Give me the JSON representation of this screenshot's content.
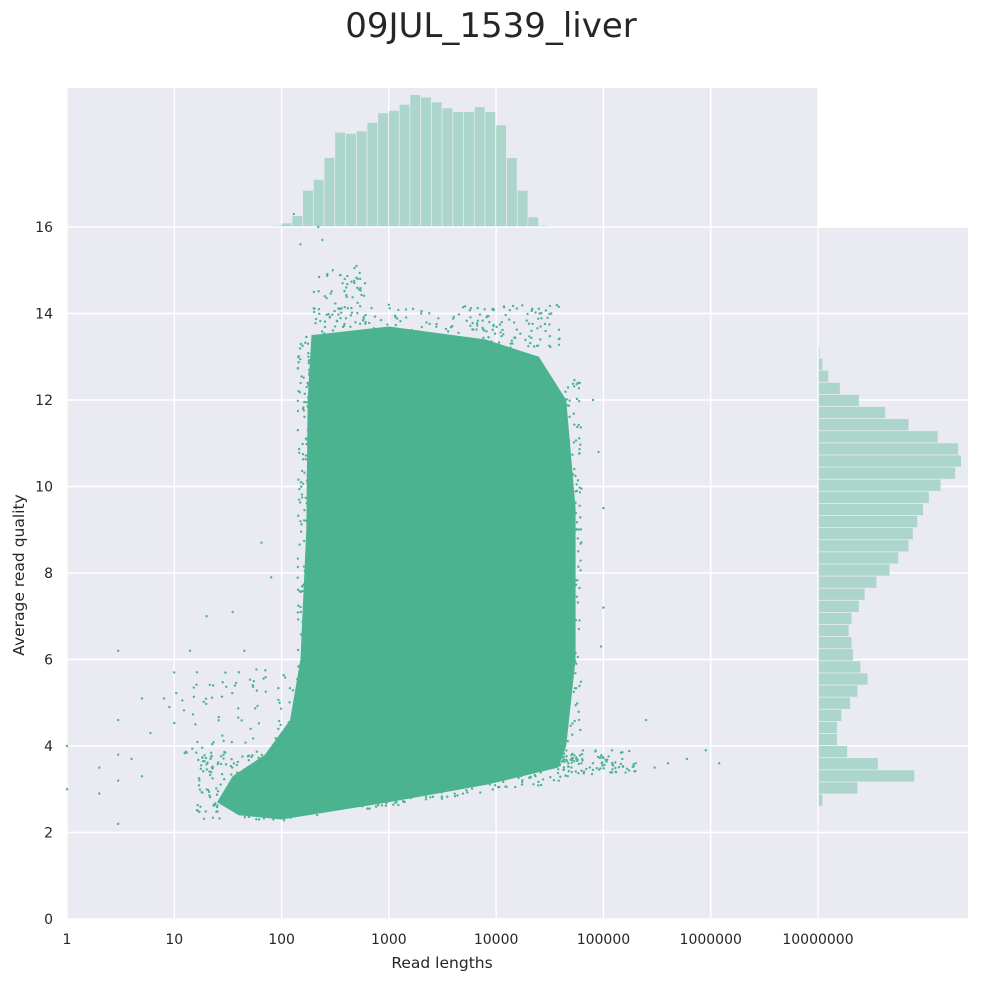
{
  "chart_data": {
    "type": "scatter",
    "title": "09JUL_1539_liver",
    "xlabel": "Read lengths",
    "ylabel": "Average read quality",
    "x_scale": "log",
    "xlim": [
      1,
      10000000
    ],
    "ylim": [
      0,
      16
    ],
    "x_ticks": [
      "1",
      "10",
      "100",
      "1000",
      "10000",
      "100000",
      "1000000",
      "10000000"
    ],
    "y_ticks": [
      "0",
      "2",
      "4",
      "6",
      "8",
      "10",
      "12",
      "14",
      "16"
    ],
    "grid": true,
    "colors": {
      "points": "#4cb391",
      "hist": "#acd6cb",
      "background": "#eaeaf2",
      "grid": "#ffffff"
    },
    "scatter_density_region": {
      "description": "dense block of reads",
      "x_range": [
        150,
        60000
      ],
      "y_range": [
        2.2,
        13.7
      ]
    },
    "outliers": [
      {
        "x": 3,
        "y": 6.2
      },
      {
        "x": 3,
        "y": 4.6
      },
      {
        "x": 3,
        "y": 3.8
      },
      {
        "x": 3,
        "y": 3.2
      },
      {
        "x": 3,
        "y": 2.2
      },
      {
        "x": 2,
        "y": 2.9
      },
      {
        "x": 2,
        "y": 3.5
      },
      {
        "x": 1,
        "y": 3.0
      },
      {
        "x": 1,
        "y": 4.0
      },
      {
        "x": 5,
        "y": 5.1
      },
      {
        "x": 5,
        "y": 3.3
      },
      {
        "x": 4,
        "y": 3.7
      },
      {
        "x": 6,
        "y": 4.3
      },
      {
        "x": 8,
        "y": 5.1
      },
      {
        "x": 9,
        "y": 4.9
      },
      {
        "x": 10,
        "y": 5.7
      },
      {
        "x": 14,
        "y": 6.2
      },
      {
        "x": 20,
        "y": 7.0
      },
      {
        "x": 23,
        "y": 5.4
      },
      {
        "x": 35,
        "y": 7.1
      },
      {
        "x": 45,
        "y": 6.2
      },
      {
        "x": 55,
        "y": 5.5
      },
      {
        "x": 65,
        "y": 8.7
      },
      {
        "x": 80,
        "y": 7.9
      },
      {
        "x": 130,
        "y": 16.3
      },
      {
        "x": 150,
        "y": 15.6
      },
      {
        "x": 200,
        "y": 14.5
      },
      {
        "x": 220,
        "y": 16.0
      },
      {
        "x": 240,
        "y": 15.7
      },
      {
        "x": 300,
        "y": 15.0
      },
      {
        "x": 400,
        "y": 14.6
      },
      {
        "x": 500,
        "y": 15.1
      },
      {
        "x": 600,
        "y": 14.7
      },
      {
        "x": 1000,
        "y": 14.2
      },
      {
        "x": 2000,
        "y": 14.0
      },
      {
        "x": 80000,
        "y": 12.0
      },
      {
        "x": 90000,
        "y": 10.8
      },
      {
        "x": 100000,
        "y": 9.5
      },
      {
        "x": 100000,
        "y": 7.2
      },
      {
        "x": 95000,
        "y": 6.3
      },
      {
        "x": 120000,
        "y": 3.9
      },
      {
        "x": 150000,
        "y": 3.7
      },
      {
        "x": 200000,
        "y": 3.6
      },
      {
        "x": 250000,
        "y": 4.6
      },
      {
        "x": 300000,
        "y": 3.5
      },
      {
        "x": 400000,
        "y": 3.6
      },
      {
        "x": 600000,
        "y": 3.7
      },
      {
        "x": 900000,
        "y": 3.9
      },
      {
        "x": 1200000,
        "y": 3.6
      }
    ],
    "marginal_x_hist": {
      "bin_edges_log10": [
        1.9,
        2.0,
        2.1,
        2.2,
        2.3,
        2.4,
        2.5,
        2.6,
        2.7,
        2.8,
        2.9,
        3.0,
        3.1,
        3.2,
        3.3,
        3.4,
        3.5,
        3.6,
        3.7,
        3.8,
        3.9,
        4.0,
        4.1,
        4.2,
        4.3,
        4.4,
        4.5,
        4.6,
        4.7,
        4.8
      ],
      "counts": [
        1,
        3,
        9,
        30,
        39,
        57,
        78,
        77,
        79,
        86,
        94,
        96,
        101,
        109,
        107,
        103,
        98,
        95,
        95,
        99,
        95,
        84,
        57,
        30,
        8,
        1,
        0.5,
        0,
        0
      ]
    },
    "marginal_y_hist": {
      "bin_edges": [
        2.6,
        2.88,
        3.16,
        3.44,
        3.72,
        4.0,
        4.28,
        4.56,
        4.84,
        5.12,
        5.4,
        5.68,
        5.96,
        6.24,
        6.52,
        6.8,
        7.08,
        7.36,
        7.64,
        7.92,
        8.2,
        8.48,
        8.76,
        9.04,
        9.32,
        9.6,
        9.88,
        10.16,
        10.44,
        10.72,
        11.0,
        11.28,
        11.56,
        11.84,
        12.12,
        12.4,
        12.68,
        12.96,
        13.24
      ],
      "counts": [
        3,
        27,
        66,
        41,
        20,
        13,
        13,
        16,
        22,
        27,
        34,
        29,
        24,
        23,
        21,
        23,
        28,
        32,
        40,
        49,
        55,
        62,
        65,
        68,
        72,
        76,
        84,
        94,
        98,
        96,
        82,
        62,
        46,
        28,
        15,
        7,
        3,
        1
      ]
    }
  }
}
